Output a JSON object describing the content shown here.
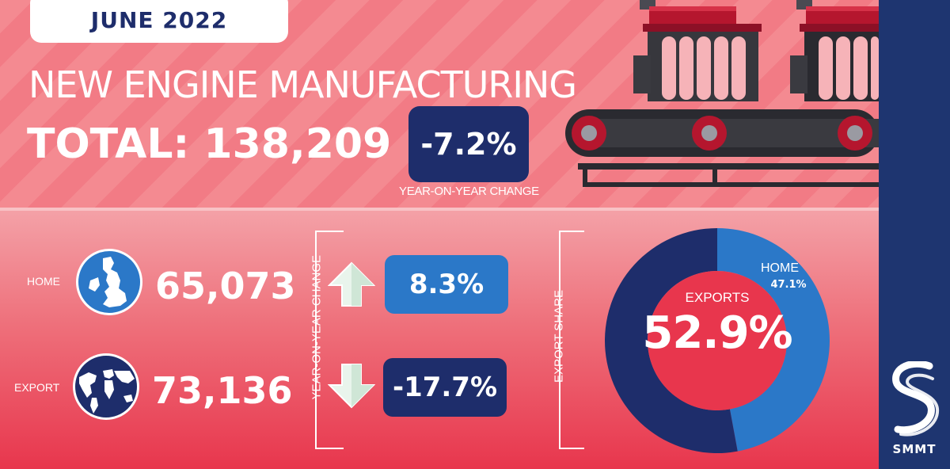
{
  "header": {
    "date": "JUNE 2022",
    "title": "NEW ENGINE MANUFACTURING",
    "total_label": "TOTAL:",
    "total_value": "138,209",
    "yoy_value": "-7.2%",
    "yoy_caption": "YEAR-ON-YEAR CHANGE"
  },
  "breakdown": {
    "home_label": "HOME",
    "home_value": "65,073",
    "export_label": "EXPORT",
    "export_value": "73,136",
    "yoy_vertical_label": "YEAR-ON-YEAR CHANGE",
    "home_change": "8.3%",
    "export_change": "-17.7%"
  },
  "share": {
    "vertical_label": "EXPORT SHARE",
    "exports_label": "EXPORTS",
    "exports_value": "52.9%",
    "home_label": "HOME",
    "home_value": "47.1%",
    "exports_fraction": 0.529,
    "home_fraction": 0.471
  },
  "brand": {
    "name": "SMMT",
    "logo_icon": "smmt-logo-icon"
  },
  "colors": {
    "navy": "#1e2d6b",
    "blue": "#2b78c8",
    "red": "#e8364d",
    "white": "#ffffff"
  },
  "icons": {
    "home": "uk-map-icon",
    "export": "world-map-icon",
    "up": "arrow-up-icon",
    "down": "arrow-down-icon",
    "illustration": "engine-conveyor-icon"
  }
}
